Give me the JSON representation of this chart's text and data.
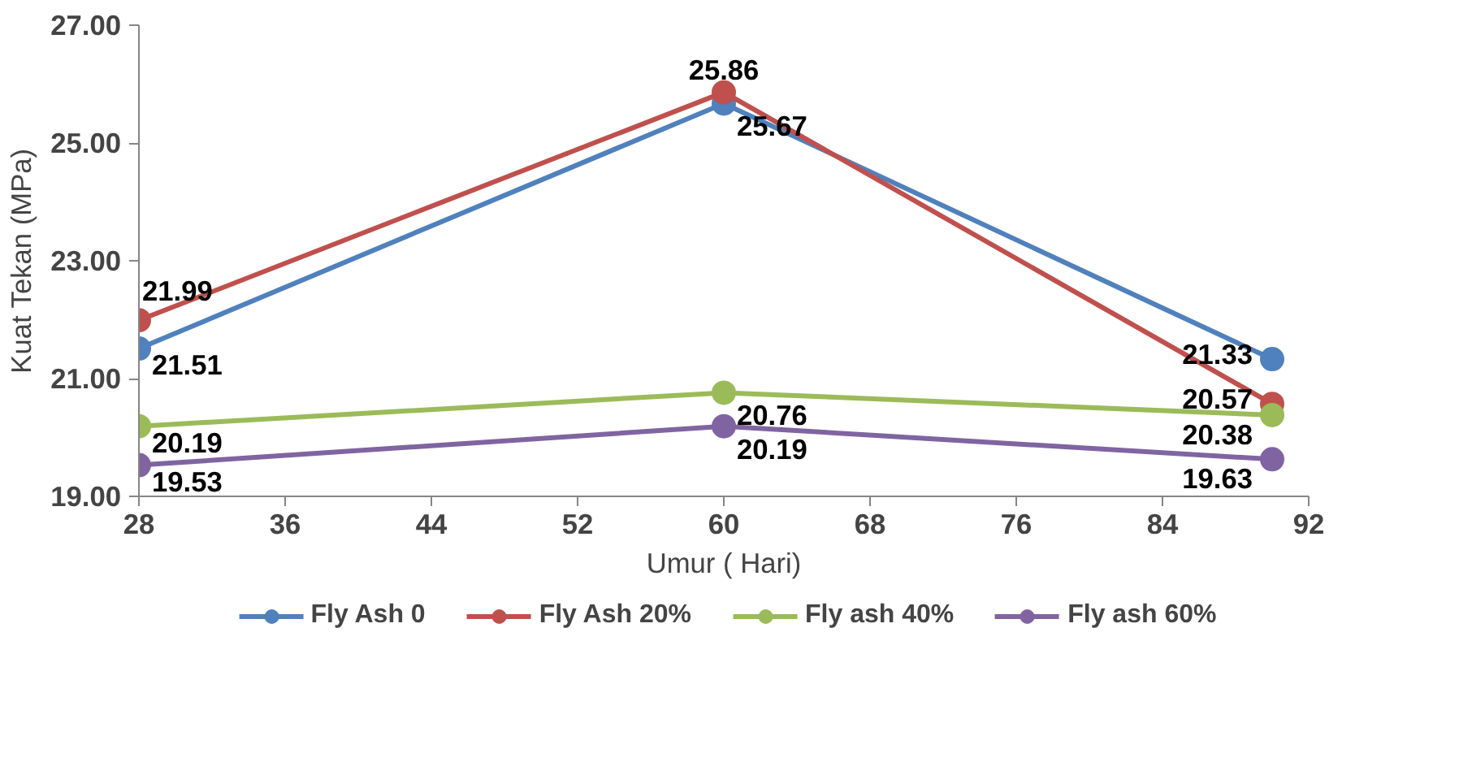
{
  "chart_data": {
    "type": "line",
    "xlabel": "Umur ( Hari)",
    "ylabel": "Kuat Tekan (MPa)",
    "x": [
      28,
      60,
      90
    ],
    "series": [
      {
        "name": "Fly Ash 0",
        "color": "#4f81bd",
        "values": [
          21.51,
          25.67,
          21.33
        ]
      },
      {
        "name": "Fly Ash 20%",
        "color": "#c0504d",
        "values": [
          21.99,
          25.86,
          20.57
        ]
      },
      {
        "name": "Fly ash 40%",
        "color": "#9bbb59",
        "values": [
          20.19,
          20.76,
          20.38
        ]
      },
      {
        "name": "Fly ash 60%",
        "color": "#8064a2",
        "values": [
          19.53,
          20.19,
          19.63
        ]
      }
    ],
    "xlim": [
      28,
      92
    ],
    "xticks": [
      28,
      36,
      44,
      52,
      60,
      68,
      76,
      84,
      92
    ],
    "ylim": [
      19,
      27
    ],
    "yticks": [
      {
        "value": 19,
        "label": "19.00"
      },
      {
        "value": 21,
        "label": "21.00"
      },
      {
        "value": 23,
        "label": "23.00"
      },
      {
        "value": 25,
        "label": "25.00"
      },
      {
        "value": 27,
        "label": "27.00"
      }
    ],
    "grid": false,
    "legend": "bottom",
    "marker": "circle",
    "line_style": "solid",
    "data_labels": true
  }
}
